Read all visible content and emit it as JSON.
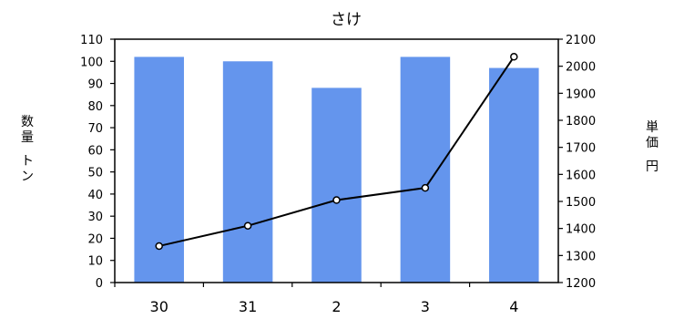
{
  "chart_data": {
    "type": "bar",
    "title": "さけ",
    "categories": [
      "30",
      "31",
      "2",
      "3",
      "4"
    ],
    "series": [
      {
        "type": "bar",
        "axis": "left",
        "color": "#6495ED",
        "values": [
          102,
          100,
          88,
          102,
          97
        ]
      },
      {
        "type": "line",
        "axis": "right",
        "color": "#000000",
        "values": [
          1335,
          1410,
          1505,
          1550,
          2035
        ]
      }
    ],
    "y_left": {
      "label": "数量\nトン",
      "min": 0,
      "max": 110,
      "step": 10,
      "ticks": [
        "0",
        "10",
        "20",
        "30",
        "40",
        "50",
        "60",
        "70",
        "80",
        "90",
        "100",
        "110"
      ]
    },
    "y_right": {
      "label": "単価\n円",
      "min": 1200,
      "max": 2100,
      "step": 100,
      "ticks": [
        "1200",
        "1300",
        "1400",
        "1500",
        "1600",
        "1700",
        "1800",
        "1900",
        "2000",
        "2100"
      ]
    },
    "grid": false,
    "legend": "none"
  }
}
